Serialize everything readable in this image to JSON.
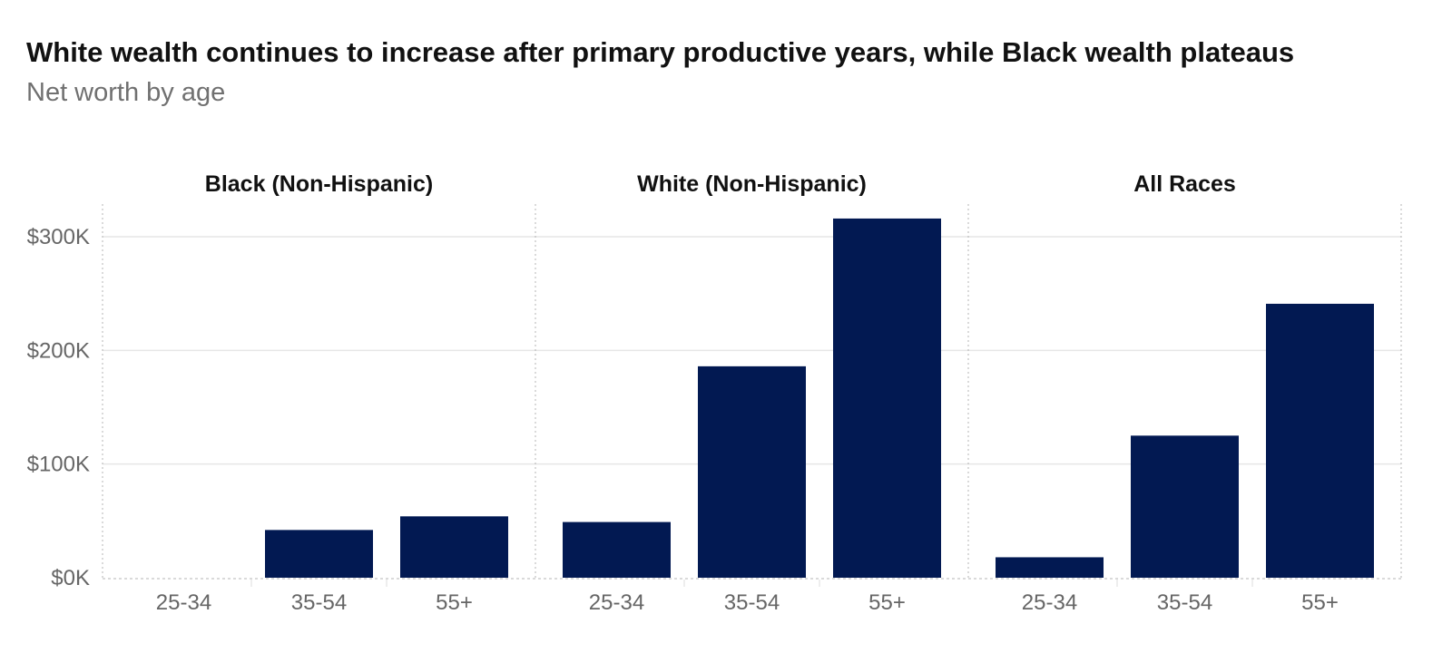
{
  "chart_data": {
    "type": "bar",
    "title": "White wealth continues to increase after primary productive years, while Black wealth plateaus",
    "subtitle": "Net worth by age",
    "xlabel": "",
    "ylabel": "",
    "categories": [
      "25-34",
      "35-54",
      "55+"
    ],
    "panels": [
      {
        "name": "Black (Non-Hispanic)",
        "values": [
          0,
          42000,
          54000
        ]
      },
      {
        "name": "White (Non-Hispanic)",
        "values": [
          49000,
          186000,
          316000
        ]
      },
      {
        "name": "All Races",
        "values": [
          18000,
          125000,
          241000
        ]
      }
    ],
    "y_ticks": [
      0,
      100000,
      200000,
      300000
    ],
    "y_tick_labels": [
      "$0K",
      "$100K",
      "$200K",
      "$300K"
    ],
    "ylim": [
      0,
      330000
    ],
    "grid": true,
    "legend": "none",
    "colors": {
      "bar": "#021952",
      "gridline": "#e6e6e6",
      "panel_divider": "#b4b4b4"
    }
  }
}
